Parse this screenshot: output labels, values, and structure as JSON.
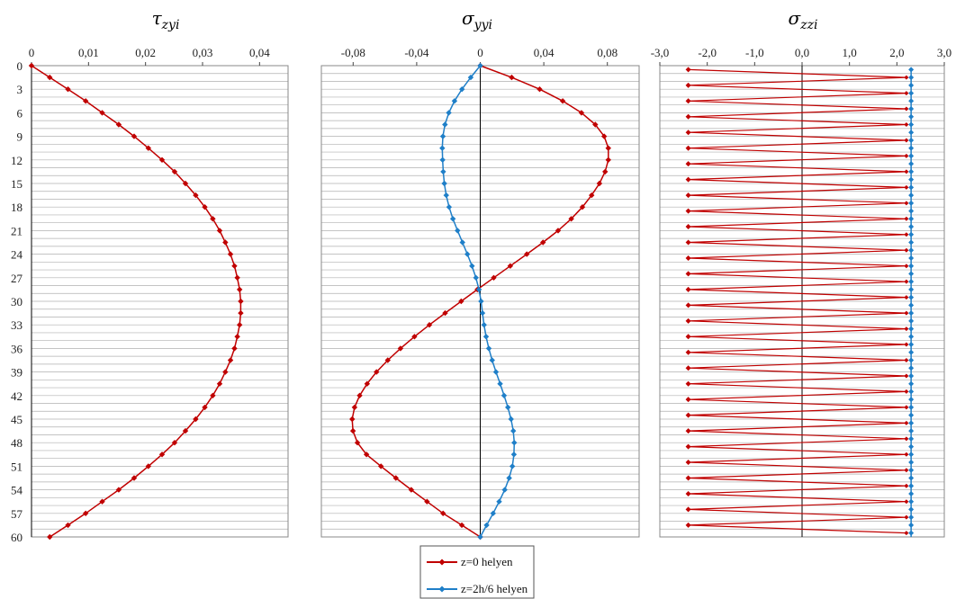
{
  "chart_data": [
    {
      "type": "line",
      "title": "τzyi",
      "title_symbol": "τ",
      "title_subscript": "zyi",
      "x_ticks": [
        "0",
        "0,01",
        "0,02",
        "0,03",
        "0,04"
      ],
      "xlim": [
        0,
        0.045
      ],
      "y_ticks": [
        "0",
        "3",
        "6",
        "9",
        "12",
        "15",
        "18",
        "21",
        "24",
        "27",
        "30",
        "33",
        "36",
        "39",
        "42",
        "45",
        "48",
        "51",
        "54",
        "57",
        "60"
      ],
      "ylim": [
        0,
        60
      ],
      "y_inverted": true,
      "x_axis_position": "top",
      "grid": "horizontal",
      "series": [
        {
          "name": "z=0 helyen",
          "y": [
            0,
            1.5,
            3,
            4.5,
            6,
            7.5,
            9,
            10.5,
            12,
            13.5,
            15,
            16.5,
            18,
            19.5,
            21,
            22.5,
            24,
            25.5,
            27,
            28.5,
            30,
            31.5,
            33,
            34.5,
            36,
            37.5,
            39,
            40.5,
            42,
            43.5,
            45,
            46.5,
            48,
            49.5,
            51,
            52.5,
            54,
            55.5,
            57,
            58.5,
            60
          ],
          "x": [
            0,
            0.0032,
            0.0064,
            0.0095,
            0.0124,
            0.0153,
            0.018,
            0.0205,
            0.0229,
            0.0251,
            0.027,
            0.0288,
            0.0304,
            0.0318,
            0.033,
            0.034,
            0.0349,
            0.0356,
            0.0361,
            0.0365,
            0.0367,
            0.0367,
            0.0365,
            0.0361,
            0.0356,
            0.0349,
            0.034,
            0.033,
            0.0318,
            0.0304,
            0.0288,
            0.027,
            0.0251,
            0.0229,
            0.0205,
            0.018,
            0.0153,
            0.0124,
            0.0095,
            0.0064,
            0.0032
          ]
        }
      ]
    },
    {
      "type": "line",
      "title": "σyyi",
      "title_symbol": "σ",
      "title_subscript": "yyi",
      "x_ticks": [
        "-0,08",
        "-0,04",
        "0",
        "0,04",
        "0,08"
      ],
      "xlim": [
        -0.1,
        0.1
      ],
      "y_ticks": [],
      "ylim": [
        0,
        60
      ],
      "y_inverted": true,
      "x_axis_position": "top",
      "grid": "horizontal",
      "series": [
        {
          "name": "z=0 helyen",
          "y": [
            0,
            1.5,
            3,
            4.5,
            6,
            7.5,
            9,
            10.5,
            12,
            13.5,
            15,
            16.5,
            18,
            19.5,
            21,
            22.5,
            24,
            25.5,
            27,
            28.5,
            30,
            31.5,
            33,
            34.5,
            36,
            37.5,
            39,
            40.5,
            42,
            43.5,
            45,
            46.5,
            48,
            49.5,
            51,
            52.5,
            54,
            55.5,
            57,
            58.5,
            60
          ],
          "x": [
            0,
            0.0198,
            0.0374,
            0.0519,
            0.0637,
            0.0724,
            0.078,
            0.0806,
            0.0806,
            0.0786,
            0.075,
            0.0701,
            0.0643,
            0.0573,
            0.049,
            0.0395,
            0.0293,
            0.0189,
            0.0085,
            -0.0018,
            -0.012,
            -0.0221,
            -0.032,
            -0.0414,
            -0.0502,
            -0.0582,
            -0.0653,
            -0.0712,
            -0.0759,
            -0.0791,
            -0.0806,
            -0.0801,
            -0.0773,
            -0.0716,
            -0.0625,
            -0.0531,
            -0.0434,
            -0.0335,
            -0.0234,
            -0.0116,
            0
          ]
        },
        {
          "name": "z=2h/6 helyen",
          "y": [
            0,
            1.5,
            3,
            4.5,
            6,
            7.5,
            9,
            10.5,
            12,
            13.5,
            15,
            16.5,
            18,
            19.5,
            21,
            22.5,
            24,
            25.5,
            27,
            28.5,
            30,
            31.5,
            33,
            34.5,
            36,
            37.5,
            39,
            40.5,
            42,
            43.5,
            45,
            46.5,
            48,
            49.5,
            51,
            52.5,
            54,
            55.5,
            57,
            58.5,
            60
          ],
          "x": [
            0,
            -0.006,
            -0.0115,
            -0.0162,
            -0.0198,
            -0.0222,
            -0.0235,
            -0.0239,
            -0.0237,
            -0.0233,
            -0.0226,
            -0.0214,
            -0.0196,
            -0.0172,
            -0.0143,
            -0.0112,
            -0.0081,
            -0.0052,
            -0.0027,
            -0.0008,
            0.0005,
            0.0014,
            0.0024,
            0.0037,
            0.0054,
            0.0075,
            0.0099,
            0.0125,
            0.015,
            0.0174,
            0.0194,
            0.0208,
            0.0214,
            0.0212,
            0.0202,
            0.0182,
            0.0154,
            0.0119,
            0.0081,
            0.004,
            0
          ]
        }
      ]
    },
    {
      "type": "line",
      "title": "σzzi",
      "title_symbol": "σ",
      "title_subscript": "zzi",
      "x_ticks": [
        "-3,0",
        "-2,0",
        "-1,0",
        "0,0",
        "1,0",
        "2,0",
        "3,0"
      ],
      "xlim": [
        -3,
        3
      ],
      "y_ticks": [],
      "ylim": [
        0,
        60
      ],
      "y_inverted": true,
      "x_axis_position": "top",
      "grid": "horizontal",
      "series": [
        {
          "name": "z=0 helyen",
          "pattern": "alternating",
          "left": -2.4,
          "right": 2.2
        },
        {
          "name": "z=2h/6 helyen",
          "pattern": "constant",
          "x": 2.3
        }
      ]
    }
  ],
  "legend": {
    "items": [
      {
        "label": "z=0 helyen",
        "color": "#c00000"
      },
      {
        "label": "z=2h/6 helyen",
        "color": "#1f7fc8"
      }
    ],
    "placement": "bottom-center"
  },
  "colors": {
    "red": "#c00000",
    "blue": "#1f7fc8",
    "grid": "#b0b0b0",
    "frame": "#888888",
    "zero_line": "#000000"
  }
}
